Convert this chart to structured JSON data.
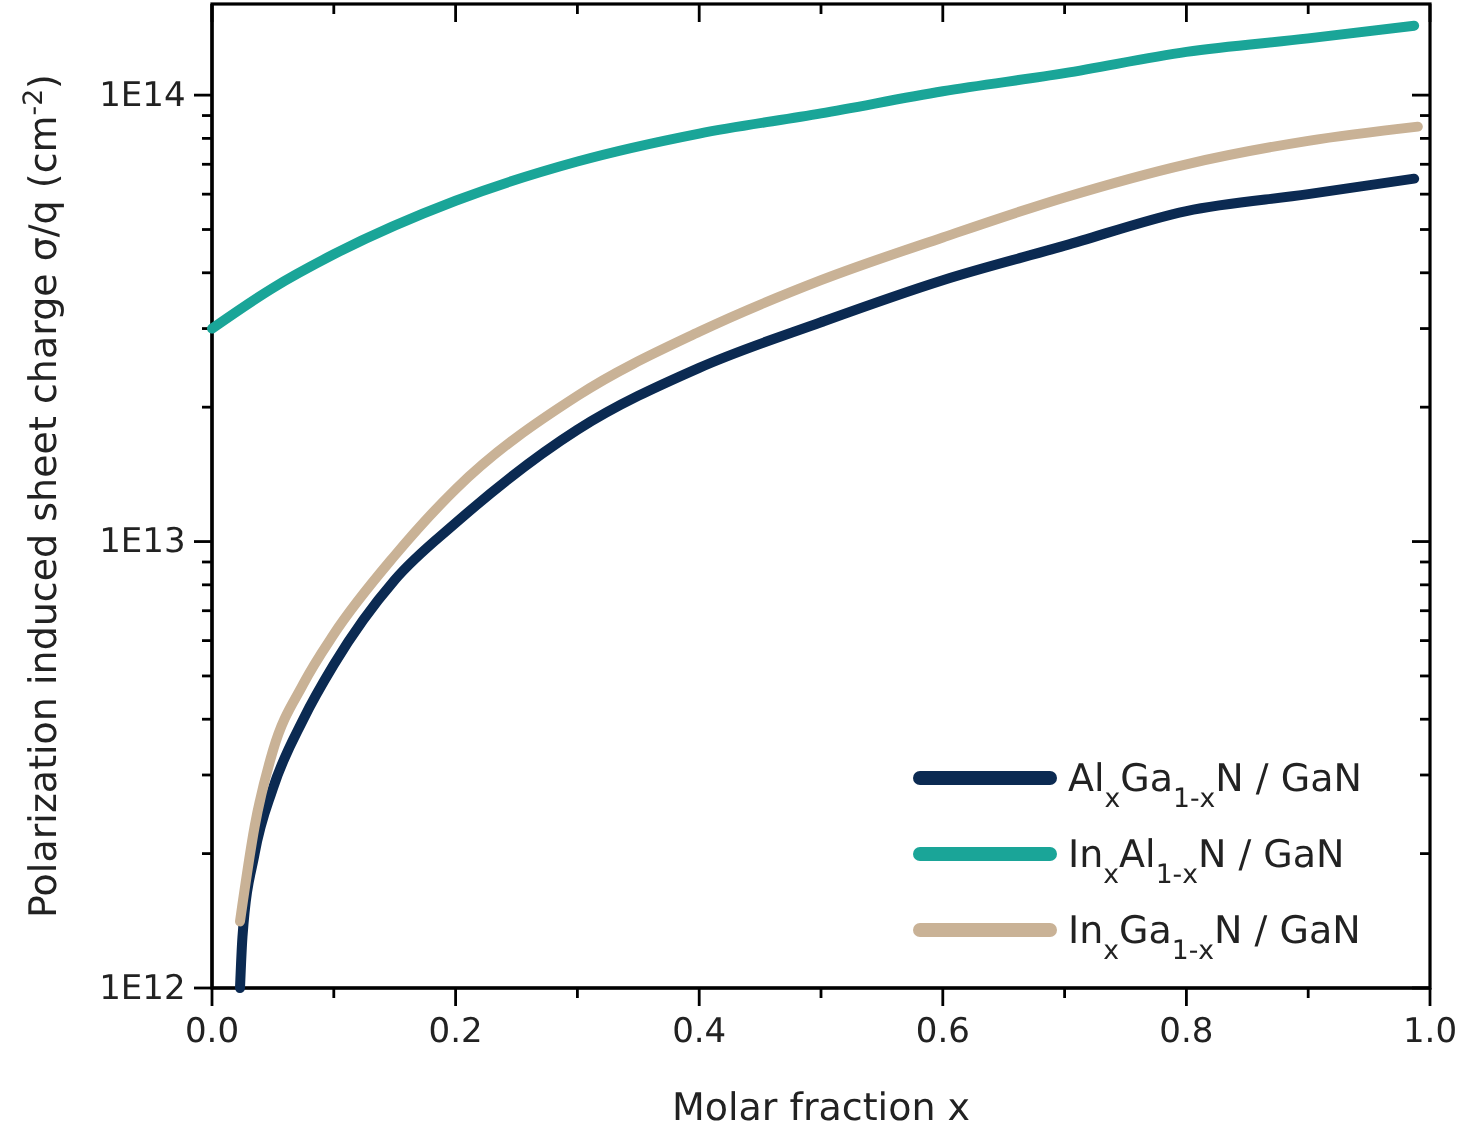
{
  "chart_data": {
    "type": "line",
    "xlabel": "Molar fraction x",
    "ylabel": "Polarization induced sheet charge σ/q (cm$^{-2}$)",
    "log": "y",
    "legend": "bottom right",
    "line_style": "solid",
    "marker": "none",
    "grid": false,
    "xlim": [
      0,
      1
    ],
    "ylim": [
      1000000000000.0,
      160000000000000.0
    ],
    "xticks": [
      {
        "value": 0,
        "label": "0.0"
      },
      {
        "value": 0.1,
        "label": null
      },
      {
        "value": 0.2,
        "label": "0.2"
      },
      {
        "value": 0.3,
        "label": null
      },
      {
        "value": 0.4,
        "label": "0.4"
      },
      {
        "value": 0.5,
        "label": null
      },
      {
        "value": 0.6,
        "label": "0.6"
      },
      {
        "value": 0.7,
        "label": null
      },
      {
        "value": 0.8,
        "label": "0.8"
      },
      {
        "value": 0.9,
        "label": null
      },
      {
        "value": 1,
        "label": "1.0"
      }
    ],
    "yticks": [
      {
        "value": 1000000000000.0,
        "label": "1E12"
      },
      {
        "value": 2000000000000.0,
        "label": null
      },
      {
        "value": 3000000000000.0,
        "label": null
      },
      {
        "value": 4000000000000.0,
        "label": null
      },
      {
        "value": 5000000000000.0,
        "label": null
      },
      {
        "value": 6000000000000.0,
        "label": null
      },
      {
        "value": 7000000000000.0,
        "label": null
      },
      {
        "value": 8000000000000.0,
        "label": null
      },
      {
        "value": 9000000000000.0,
        "label": null
      },
      {
        "value": 10000000000000.0,
        "label": "1E13"
      },
      {
        "value": 20000000000000.0,
        "label": null
      },
      {
        "value": 30000000000000.0,
        "label": null
      },
      {
        "value": 40000000000000.0,
        "label": null
      },
      {
        "value": 50000000000000.0,
        "label": null
      },
      {
        "value": 60000000000000.0,
        "label": null
      },
      {
        "value": 70000000000000.0,
        "label": null
      },
      {
        "value": 80000000000000.0,
        "label": null
      },
      {
        "value": 90000000000000.0,
        "label": null
      },
      {
        "value": 100000000000000.0,
        "label": "1E14"
      }
    ],
    "series": [
      {
        "name": "Al$_{x}$Ga$_{1-x}$N / GaN",
        "color": "#0b2a52",
        "x": [
          0.023,
          0.025,
          0.035,
          0.05,
          0.075,
          0.1,
          0.15,
          0.2,
          0.3,
          0.4,
          0.5,
          0.6,
          0.7,
          0.8,
          0.9,
          0.987
        ],
        "values": [
          1000000000000.0,
          1300000000000.0,
          2000000000000.0,
          2800000000000.0,
          4000000000000.0,
          5300000000000.0,
          8200000000000.0,
          11000000000000.0,
          17800000000000.0,
          24500000000000.0,
          31000000000000.0,
          38500000000000.0,
          46000000000000.0,
          55000000000000.0,
          60000000000000.0,
          65000000000000.0
        ]
      },
      {
        "name": "In$_{x}$Al$_{1-x}$N / GaN",
        "color": "#1aa598",
        "x": [
          0,
          0.05,
          0.1,
          0.2,
          0.3,
          0.4,
          0.5,
          0.6,
          0.7,
          0.8,
          0.9,
          0.987
        ],
        "values": [
          30000000000000.0,
          37000000000000.0,
          44000000000000.0,
          58000000000000.0,
          71000000000000.0,
          82000000000000.0,
          91000000000000.0,
          102000000000000.0,
          112000000000000.0,
          125000000000000.0,
          134000000000000.0,
          143000000000000.0
        ]
      },
      {
        "name": "In$_{x}$Ga$_{1-x}$N / GaN",
        "color": "#c9b296",
        "x": [
          0.023,
          0.035,
          0.05,
          0.075,
          0.1,
          0.15,
          0.2,
          0.3,
          0.4,
          0.5,
          0.6,
          0.7,
          0.8,
          0.9,
          0.99
        ],
        "values": [
          1410000000000.0,
          2300000000000.0,
          3400000000000.0,
          4800000000000.0,
          6200000000000.0,
          9300000000000.0,
          13100000000000.0,
          21200000000000.0,
          29500000000000.0,
          38500000000000.0,
          48000000000000.0,
          59000000000000.0,
          70000000000000.0,
          79000000000000.0,
          85000000000000.0
        ]
      }
    ]
  }
}
